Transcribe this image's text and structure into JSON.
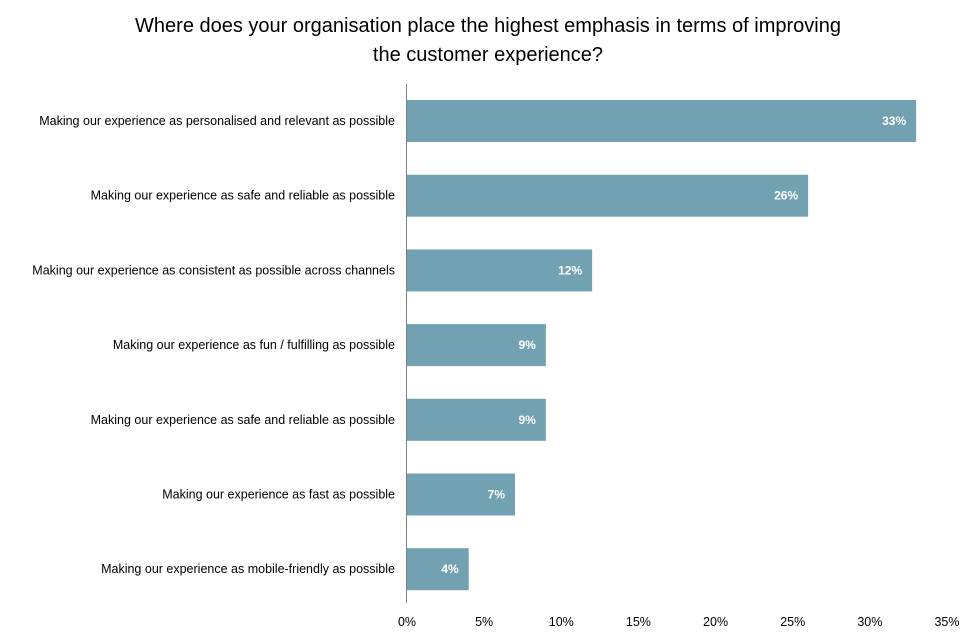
{
  "chart_data": {
    "type": "bar",
    "orientation": "horizontal",
    "title_lines": [
      "Where does your organisation place the highest emphasis in terms of improving",
      "the customer experience?"
    ],
    "categories": [
      "Making our experience as personalised and relevant as possible",
      "Making our experience as safe and reliable as possible",
      "Making our experience as consistent as possible across channels",
      "Making our experience as fun / fulfilling as possible",
      "Making our experience as safe and reliable as possible",
      "Making our experience as fast as possible",
      "Making our experience as mobile-friendly as possible"
    ],
    "values": [
      33,
      26,
      12,
      9,
      9,
      7,
      4
    ],
    "data_labels": [
      "33%",
      "26%",
      "12%",
      "9%",
      "9%",
      "7%",
      "4%"
    ],
    "xlim": [
      0,
      35
    ],
    "x_ticks": [
      0,
      5,
      10,
      15,
      20,
      25,
      30,
      35
    ],
    "x_tick_labels": [
      "0%",
      "5%",
      "10%",
      "15%",
      "20%",
      "25%",
      "30%",
      "35%"
    ],
    "grid": false,
    "legend": "none",
    "bar_color": "#72a2b2",
    "axis_color": "#808080"
  }
}
